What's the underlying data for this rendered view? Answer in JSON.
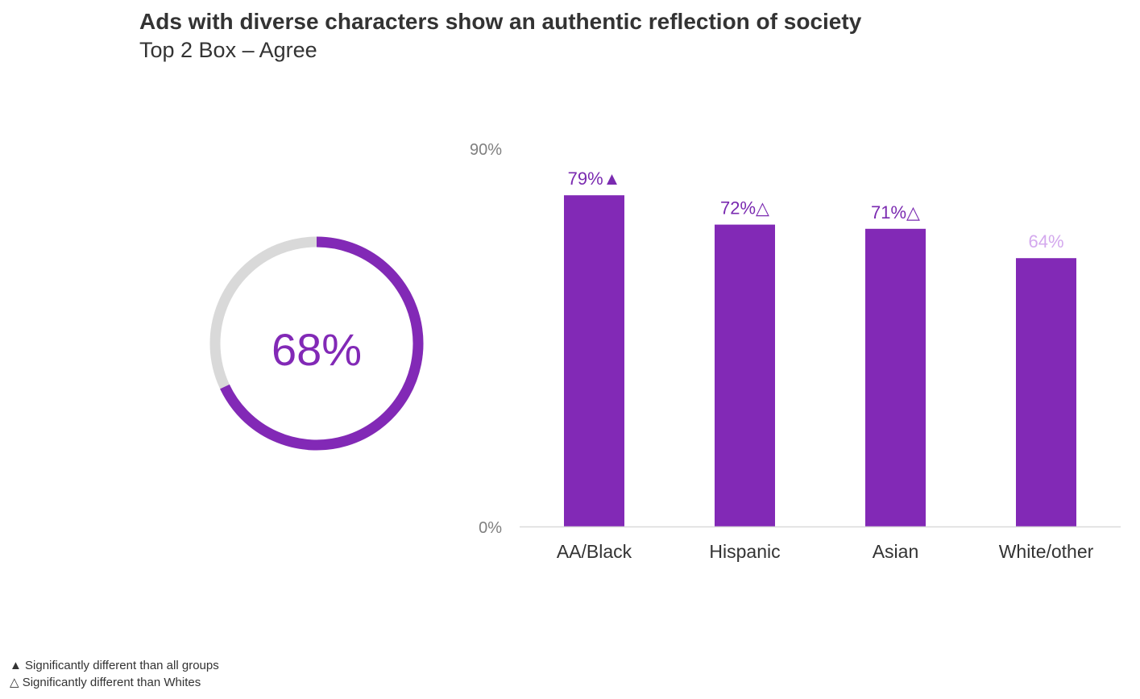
{
  "title": "Ads with diverse characters show an authentic reflection of society",
  "subtitle": "Top 2 Box – Agree",
  "colors": {
    "bar": "#8229b6",
    "label_dark": "#7a2ab0",
    "label_light": "#d4a9ee",
    "donut_track": "#d9d9d9",
    "axis_text": "#7f7f7f"
  },
  "chart_data": [
    {
      "type": "donut",
      "value": 68,
      "label": "68%"
    },
    {
      "type": "bar",
      "categories": [
        "AA/Black",
        "Hispanic",
        "Asian",
        "White/other"
      ],
      "values": [
        79,
        72,
        71,
        64
      ],
      "data_labels": [
        "79%▲",
        "72%△",
        "71%△",
        "64%"
      ],
      "ylim": [
        0,
        90
      ],
      "yticks": [
        "0%",
        "90%"
      ],
      "grid": false
    }
  ],
  "legend": [
    "▲ Significantly different than  all groups",
    "△ Significantly different than  Whites"
  ]
}
